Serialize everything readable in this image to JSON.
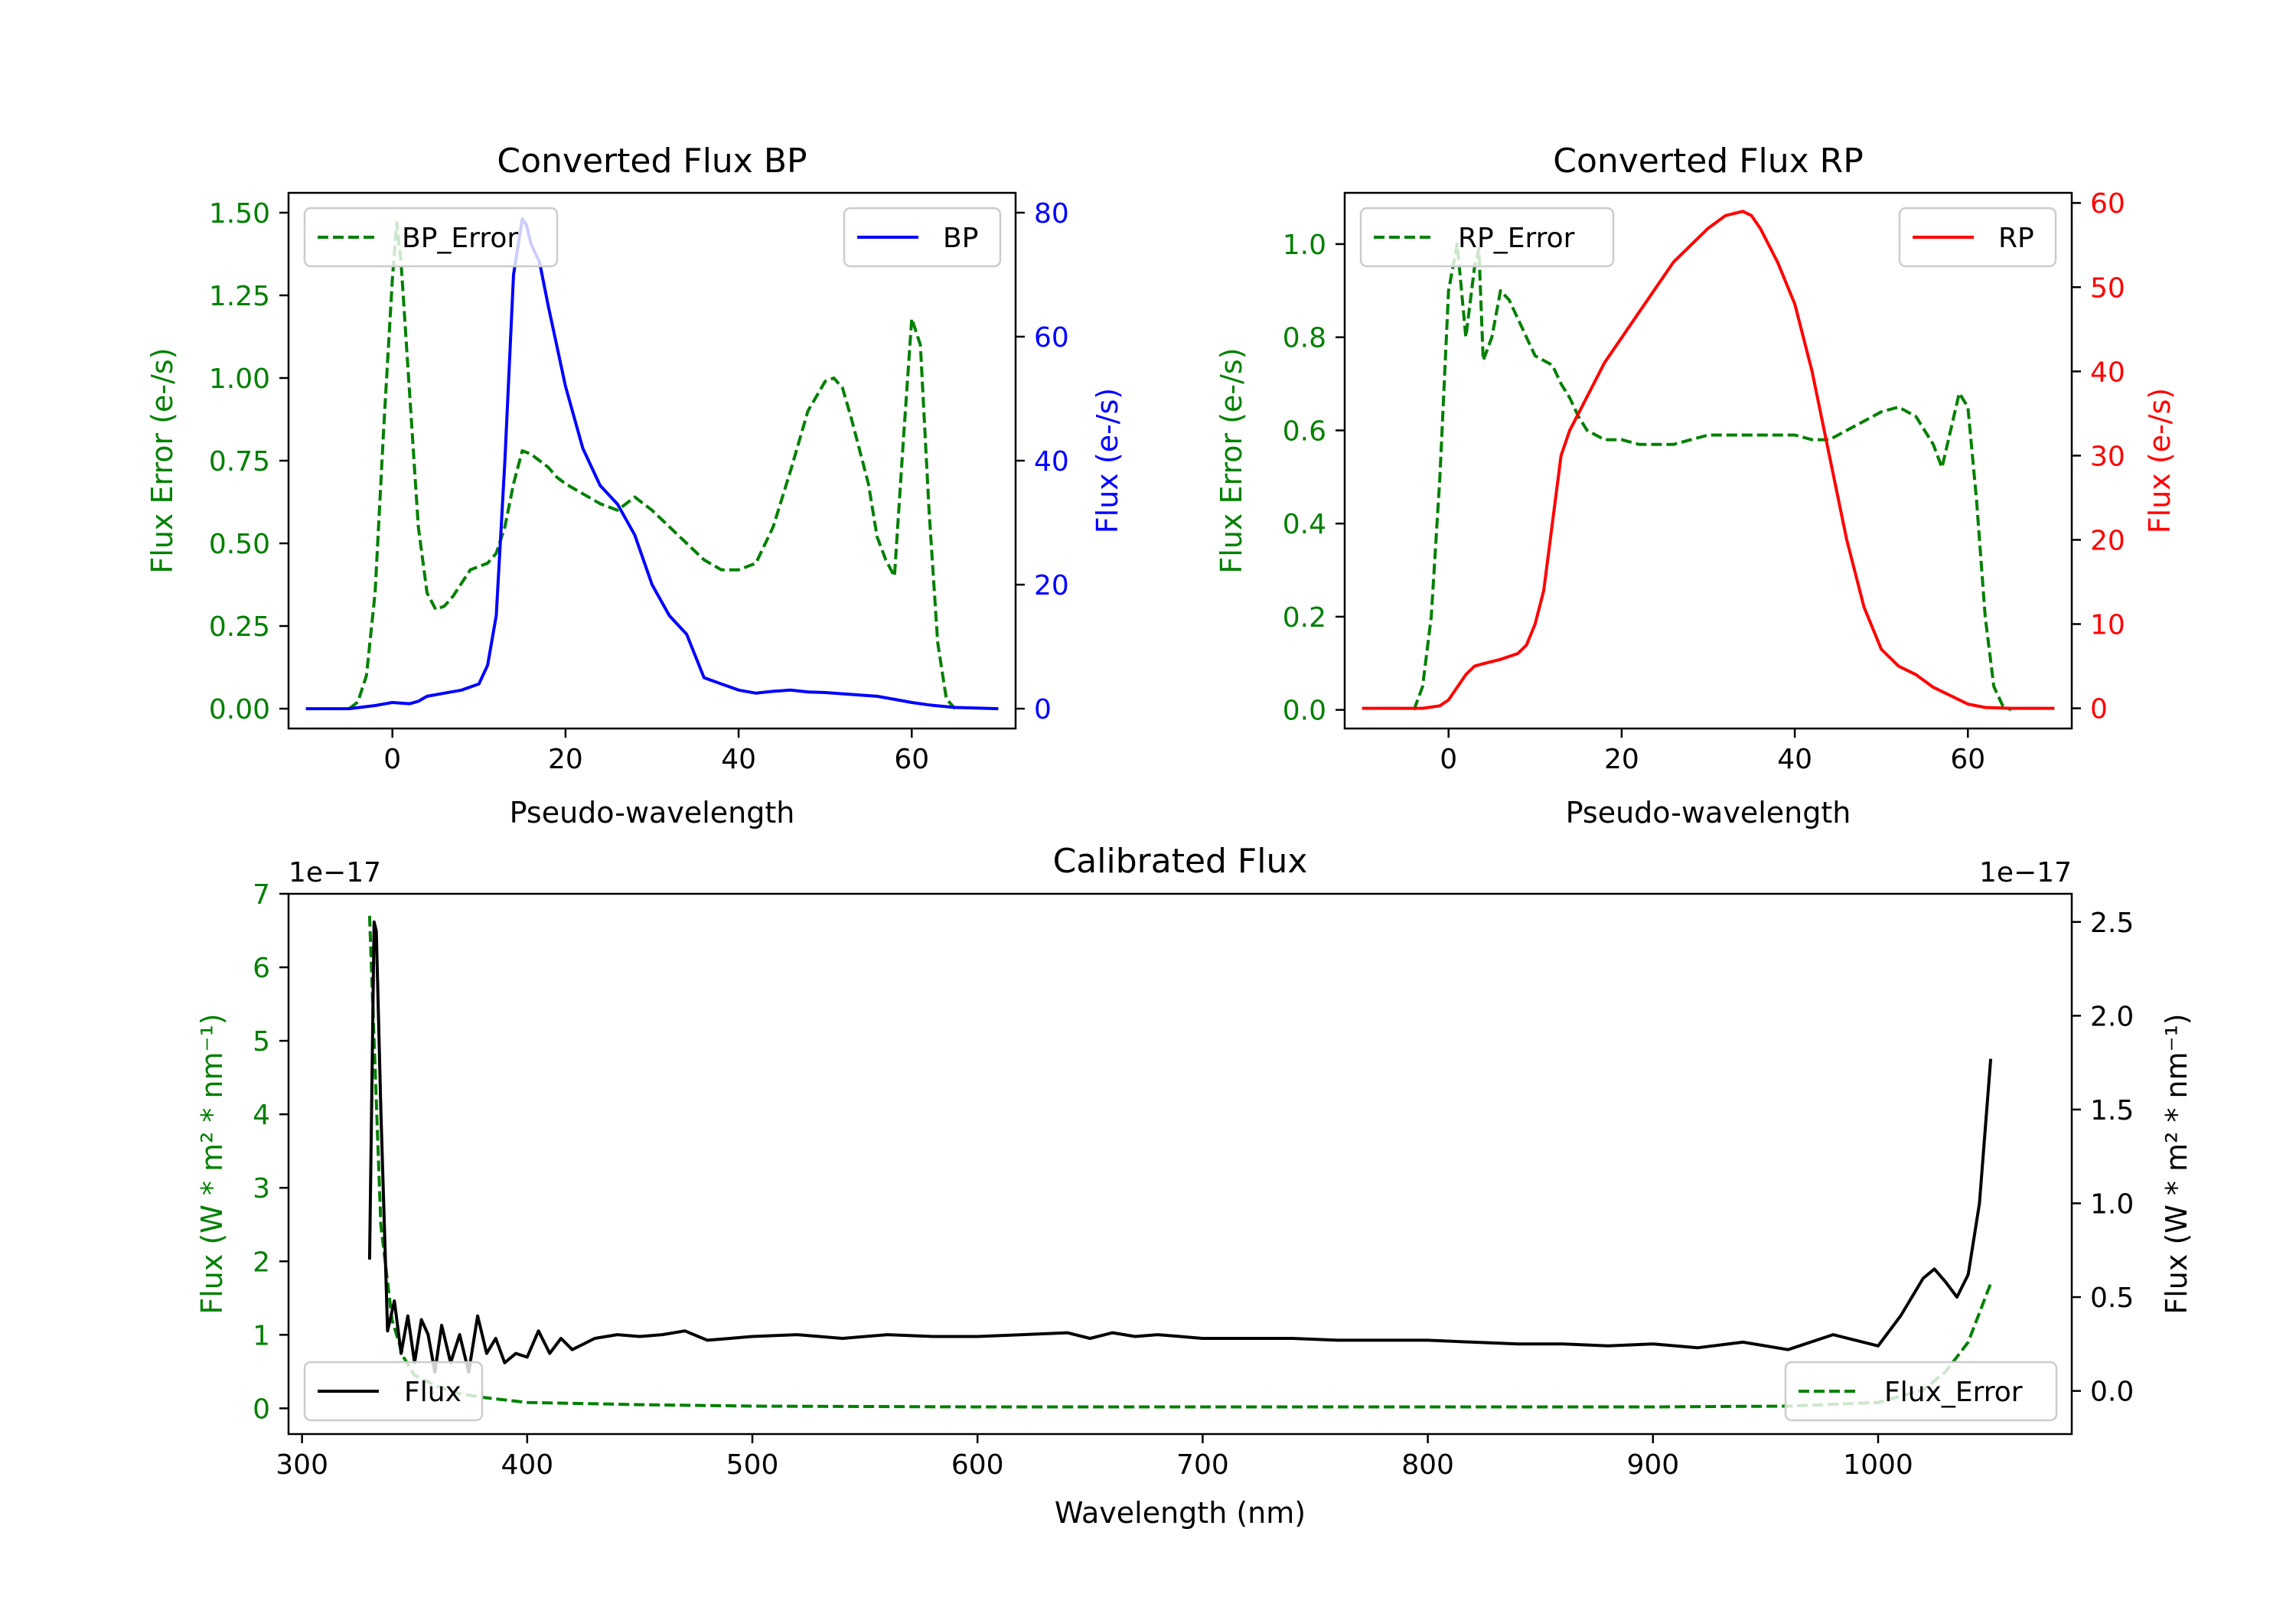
{
  "colors": {
    "error": "#008000",
    "bp": "#0000ff",
    "rp": "#ff0000",
    "flux": "#000000"
  },
  "chart_data": [
    {
      "id": "bp",
      "type": "line",
      "title": "Converted Flux BP",
      "xlabel": "Pseudo-wavelength",
      "ylabel_left": "Flux Error (e-/s)",
      "ylabel_right": "Flux (e-/s)",
      "xlim": [
        -12,
        72
      ],
      "ylim_left": [
        -0.06,
        1.56
      ],
      "ylim_right": [
        -3.2,
        83.2
      ],
      "xticks": [
        0,
        20,
        40,
        60
      ],
      "yticks_left": [
        "0.00",
        "0.25",
        "0.50",
        "0.75",
        "1.00",
        "1.25",
        "1.50"
      ],
      "yticks_right": [
        "0",
        "20",
        "40",
        "60",
        "80"
      ],
      "legend_left": "BP_Error",
      "legend_right": "BP",
      "series": [
        {
          "name": "BP_Error",
          "axis": "left",
          "style": "dashed",
          "color_key": "error",
          "x": [
            -5,
            -4,
            -3,
            -2,
            -1,
            0,
            0.5,
            1,
            2,
            3,
            4,
            5,
            6,
            7,
            8,
            9,
            10,
            11,
            12,
            13,
            14,
            15,
            16,
            17,
            18,
            19,
            20,
            22,
            24,
            26,
            28,
            30,
            32,
            34,
            36,
            38,
            40,
            42,
            44,
            46,
            48,
            50,
            51,
            52,
            53,
            54,
            55,
            56,
            57,
            58,
            59,
            60,
            61,
            62,
            63,
            64,
            65
          ],
          "y": [
            0.0,
            0.02,
            0.1,
            0.35,
            0.85,
            1.3,
            1.47,
            1.35,
            0.95,
            0.55,
            0.35,
            0.3,
            0.31,
            0.34,
            0.38,
            0.42,
            0.43,
            0.44,
            0.47,
            0.55,
            0.68,
            0.78,
            0.77,
            0.75,
            0.73,
            0.7,
            0.68,
            0.65,
            0.62,
            0.6,
            0.64,
            0.6,
            0.55,
            0.5,
            0.45,
            0.42,
            0.42,
            0.44,
            0.55,
            0.72,
            0.9,
            0.99,
            1.0,
            0.97,
            0.88,
            0.78,
            0.68,
            0.52,
            0.45,
            0.4,
            0.8,
            1.18,
            1.1,
            0.6,
            0.2,
            0.03,
            0.0
          ]
        },
        {
          "name": "BP",
          "axis": "right",
          "style": "solid",
          "color_key": "bp",
          "x": [
            -10,
            -5,
            -2,
            0,
            2,
            3,
            4,
            6,
            8,
            10,
            11,
            12,
            13,
            14,
            15,
            15.5,
            16,
            17,
            18,
            20,
            22,
            24,
            26,
            28,
            30,
            32,
            34,
            36,
            38,
            40,
            42,
            44,
            46,
            48,
            50,
            52,
            54,
            56,
            58,
            60,
            62,
            65,
            70
          ],
          "y": [
            0,
            0,
            0.5,
            1,
            0.8,
            1.2,
            2,
            2.5,
            3,
            4,
            7,
            15,
            40,
            70,
            79,
            78,
            75,
            72,
            65,
            52,
            42,
            36,
            33,
            28,
            20,
            15,
            12,
            5,
            4,
            3,
            2.5,
            2.8,
            3,
            2.7,
            2.6,
            2.4,
            2.2,
            2,
            1.5,
            1,
            0.6,
            0.2,
            0
          ]
        }
      ]
    },
    {
      "id": "rp",
      "type": "line",
      "title": "Converted Flux RP",
      "xlabel": "Pseudo-wavelength",
      "ylabel_left": "Flux Error (e-/s)",
      "ylabel_right": "Flux (e-/s)",
      "xlim": [
        -12,
        72
      ],
      "ylim_left": [
        -0.04,
        1.11
      ],
      "ylim_right": [
        -2.4,
        61.2
      ],
      "xticks": [
        0,
        20,
        40,
        60
      ],
      "yticks_left": [
        "0.0",
        "0.2",
        "0.4",
        "0.6",
        "0.8",
        "1.0"
      ],
      "yticks_right": [
        "0",
        "10",
        "20",
        "30",
        "40",
        "50",
        "60"
      ],
      "legend_left": "RP_Error",
      "legend_right": "RP",
      "series": [
        {
          "name": "RP_Error",
          "axis": "left",
          "style": "dashed",
          "color_key": "error",
          "x": [
            -4,
            -3,
            -2,
            -1,
            0,
            1,
            2,
            3,
            3.5,
            4,
            5,
            6,
            7,
            8,
            9,
            10,
            11,
            12,
            13,
            14,
            15,
            16,
            18,
            20,
            22,
            24,
            26,
            28,
            30,
            32,
            34,
            36,
            38,
            40,
            42,
            44,
            46,
            48,
            50,
            52,
            54,
            55,
            56,
            57,
            58,
            59,
            60,
            61,
            62,
            63,
            64,
            65
          ],
          "y": [
            0.0,
            0.05,
            0.2,
            0.5,
            0.9,
            1.0,
            0.8,
            0.95,
            0.99,
            0.75,
            0.8,
            0.9,
            0.88,
            0.84,
            0.8,
            0.76,
            0.75,
            0.74,
            0.7,
            0.67,
            0.63,
            0.6,
            0.58,
            0.58,
            0.57,
            0.57,
            0.57,
            0.58,
            0.59,
            0.59,
            0.59,
            0.59,
            0.59,
            0.59,
            0.58,
            0.58,
            0.6,
            0.62,
            0.64,
            0.65,
            0.63,
            0.6,
            0.57,
            0.52,
            0.6,
            0.68,
            0.65,
            0.45,
            0.2,
            0.05,
            0.01,
            0.0
          ]
        },
        {
          "name": "RP",
          "axis": "right",
          "style": "solid",
          "color_key": "rp",
          "x": [
            -10,
            -3,
            -1,
            0,
            1,
            2,
            3,
            4,
            6,
            8,
            9,
            10,
            11,
            12,
            13,
            14,
            15,
            16,
            18,
            20,
            22,
            24,
            26,
            28,
            30,
            32,
            34,
            35,
            36,
            38,
            40,
            42,
            44,
            46,
            48,
            50,
            52,
            54,
            56,
            58,
            60,
            62,
            65,
            70
          ],
          "y": [
            0,
            0,
            0.3,
            1,
            2.5,
            4,
            5,
            5.3,
            5.8,
            6.5,
            7.5,
            10,
            14,
            22,
            30,
            33,
            35,
            37,
            41,
            44,
            47,
            50,
            53,
            55,
            57,
            58.5,
            59,
            58.5,
            57,
            53,
            48,
            40,
            30,
            20,
            12,
            7,
            5,
            4,
            2.5,
            1.5,
            0.5,
            0.1,
            0,
            0
          ]
        }
      ]
    },
    {
      "id": "calibrated",
      "type": "line",
      "title": "Calibrated Flux",
      "xlabel": "Wavelength (nm)",
      "ylabel_left": "Flux (W * m² * nm⁻¹)",
      "ylabel_right": "Flux (W * m² * nm⁻¹)",
      "offset_left": "1e−17",
      "offset_right": "1e−17",
      "xlim": [
        294,
        1086
      ],
      "ylim_left": [
        -0.35,
        7.0
      ],
      "ylim_right": [
        -0.23,
        2.65
      ],
      "xticks": [
        300,
        400,
        500,
        600,
        700,
        800,
        900,
        1000
      ],
      "yticks_left": [
        "0",
        "1",
        "2",
        "3",
        "4",
        "5",
        "6",
        "7"
      ],
      "yticks_right": [
        "0.0",
        "0.5",
        "1.0",
        "1.5",
        "2.0",
        "2.5"
      ],
      "legend_left": "Flux",
      "legend_right": "Flux_Error",
      "series": [
        {
          "name": "Flux_Error",
          "axis": "left",
          "style": "dashed",
          "color_key": "error",
          "x": [
            330,
            332,
            335,
            340,
            345,
            350,
            360,
            370,
            380,
            400,
            450,
            500,
            600,
            700,
            800,
            900,
            960,
            1000,
            1020,
            1030,
            1040,
            1050
          ],
          "y": [
            6.7,
            5.0,
            2.5,
            1.2,
            0.7,
            0.45,
            0.3,
            0.2,
            0.15,
            0.08,
            0.05,
            0.03,
            0.02,
            0.02,
            0.02,
            0.02,
            0.03,
            0.08,
            0.25,
            0.5,
            0.9,
            1.7
          ]
        },
        {
          "name": "Flux",
          "axis": "right",
          "style": "solid",
          "color_key": "flux",
          "x": [
            330,
            332,
            333,
            335,
            338,
            341,
            344,
            347,
            350,
            353,
            356,
            359,
            362,
            366,
            370,
            374,
            378,
            382,
            386,
            390,
            395,
            400,
            405,
            410,
            415,
            420,
            430,
            440,
            450,
            460,
            470,
            480,
            490,
            500,
            520,
            540,
            560,
            580,
            600,
            620,
            640,
            650,
            660,
            670,
            680,
            690,
            700,
            720,
            740,
            760,
            780,
            800,
            820,
            840,
            860,
            880,
            900,
            920,
            940,
            960,
            980,
            1000,
            1010,
            1020,
            1025,
            1030,
            1035,
            1040,
            1045,
            1050
          ],
          "y": [
            0.7,
            2.5,
            2.45,
            1.5,
            0.32,
            0.48,
            0.2,
            0.4,
            0.15,
            0.38,
            0.3,
            0.1,
            0.35,
            0.15,
            0.3,
            0.1,
            0.4,
            0.2,
            0.28,
            0.15,
            0.2,
            0.18,
            0.32,
            0.2,
            0.28,
            0.22,
            0.28,
            0.3,
            0.29,
            0.3,
            0.32,
            0.27,
            0.28,
            0.29,
            0.3,
            0.28,
            0.3,
            0.29,
            0.29,
            0.3,
            0.31,
            0.28,
            0.31,
            0.29,
            0.3,
            0.29,
            0.28,
            0.28,
            0.28,
            0.27,
            0.27,
            0.27,
            0.26,
            0.25,
            0.25,
            0.24,
            0.25,
            0.23,
            0.26,
            0.22,
            0.3,
            0.24,
            0.4,
            0.6,
            0.65,
            0.58,
            0.5,
            0.62,
            1.0,
            1.77
          ]
        }
      ]
    }
  ]
}
